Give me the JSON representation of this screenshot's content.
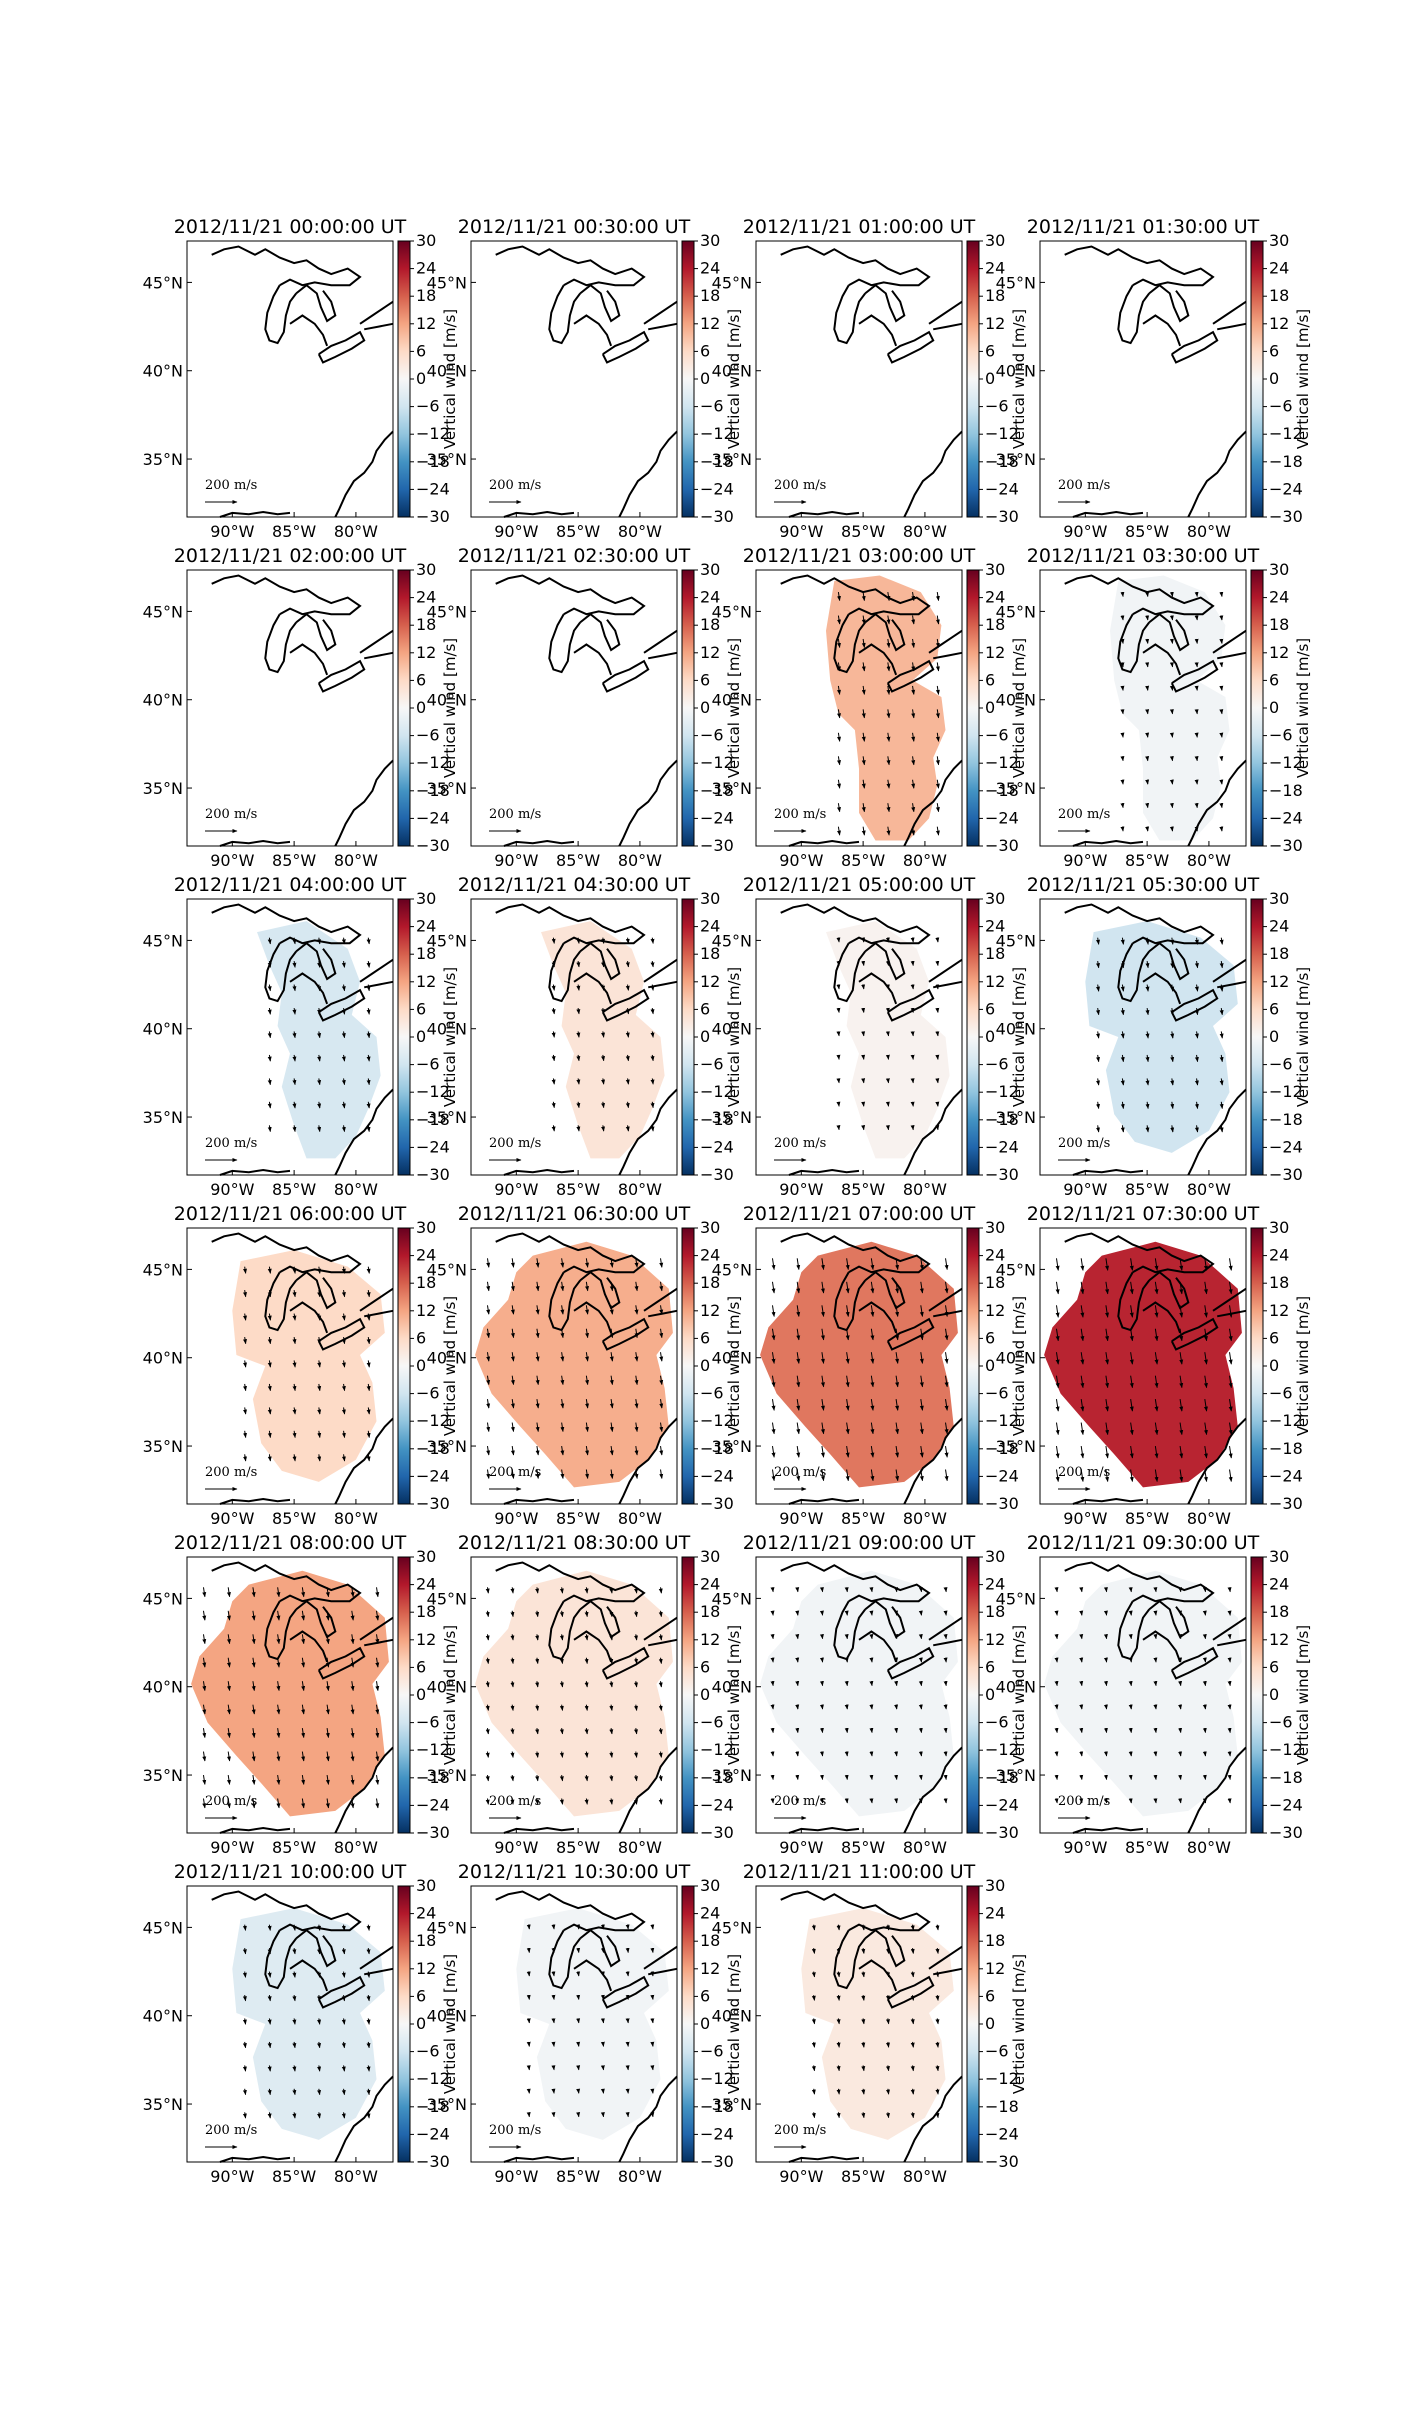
{
  "figure": {
    "colorbar_label": "Vertical wind [m/s]",
    "colorbar_ticks": [
      "30",
      "24",
      "18",
      "12",
      "6",
      "0",
      "−6",
      "−12",
      "−18",
      "−24",
      "−30"
    ],
    "lat_ticks": [
      "45°N",
      "40°N",
      "35°N"
    ],
    "lon_ticks": [
      "90°W",
      "85°W",
      "80°W"
    ],
    "reference_vector_label": "200",
    "reference_vector_unit": "m/s",
    "colormap": "RdBu_r",
    "colormap_stops": [
      "#053061",
      "#2166ac",
      "#4393c3",
      "#92c5de",
      "#d1e5f0",
      "#f7f7f7",
      "#fddbc7",
      "#f4a582",
      "#d6604d",
      "#b2182b",
      "#67001f"
    ]
  },
  "chart_data": {
    "type": "heatmap",
    "value_range": [
      -30,
      30
    ],
    "unit": "m/s",
    "panels": [
      {
        "title": "2012/11/21 00:00:00 UT",
        "value": null,
        "shape": "none"
      },
      {
        "title": "2012/11/21 00:30:00 UT",
        "value": null,
        "shape": "none"
      },
      {
        "title": "2012/11/21 01:00:00 UT",
        "value": null,
        "shape": "none"
      },
      {
        "title": "2012/11/21 01:30:00 UT",
        "value": null,
        "shape": "none"
      },
      {
        "title": "2012/11/21 02:00:00 UT",
        "value": null,
        "shape": "none"
      },
      {
        "title": "2012/11/21 02:30:00 UT",
        "value": null,
        "shape": "none"
      },
      {
        "title": "2012/11/21 03:00:00 UT",
        "value": 10,
        "shape": "small"
      },
      {
        "title": "2012/11/21 03:30:00 UT",
        "value": -1,
        "shape": "small"
      },
      {
        "title": "2012/11/21 04:00:00 UT",
        "value": -5,
        "shape": "medium"
      },
      {
        "title": "2012/11/21 04:30:00 UT",
        "value": 4,
        "shape": "medium"
      },
      {
        "title": "2012/11/21 05:00:00 UT",
        "value": 1,
        "shape": "medium"
      },
      {
        "title": "2012/11/21 05:30:00 UT",
        "value": -6,
        "shape": "wide"
      },
      {
        "title": "2012/11/21 06:00:00 UT",
        "value": 6,
        "shape": "wide"
      },
      {
        "title": "2012/11/21 06:30:00 UT",
        "value": 11,
        "shape": "large"
      },
      {
        "title": "2012/11/21 07:00:00 UT",
        "value": 16,
        "shape": "large"
      },
      {
        "title": "2012/11/21 07:30:00 UT",
        "value": 23,
        "shape": "large"
      },
      {
        "title": "2012/11/21 08:00:00 UT",
        "value": 12,
        "shape": "large"
      },
      {
        "title": "2012/11/21 08:30:00 UT",
        "value": 4,
        "shape": "large"
      },
      {
        "title": "2012/11/21 09:00:00 UT",
        "value": -1,
        "shape": "large"
      },
      {
        "title": "2012/11/21 09:30:00 UT",
        "value": -1,
        "shape": "large"
      },
      {
        "title": "2012/11/21 10:00:00 UT",
        "value": -4,
        "shape": "wide"
      },
      {
        "title": "2012/11/21 10:30:00 UT",
        "value": -1,
        "shape": "wide"
      },
      {
        "title": "2012/11/21 11:00:00 UT",
        "value": 3,
        "shape": "wide"
      }
    ]
  }
}
